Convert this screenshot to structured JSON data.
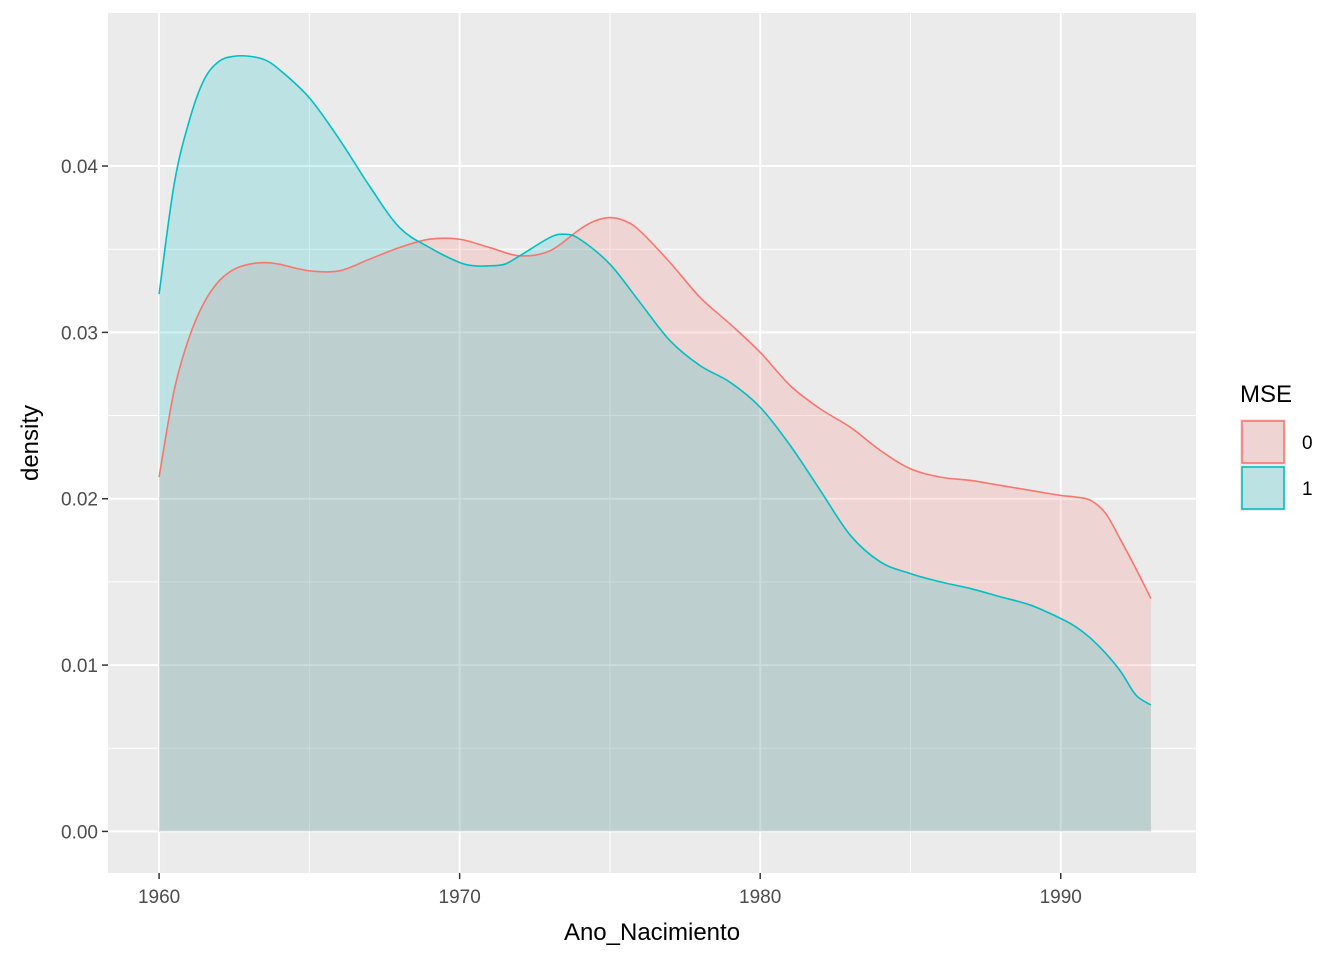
{
  "chart_data": {
    "type": "area",
    "title": "",
    "xlabel": "Ano_Nacimiento",
    "ylabel": "density",
    "xlim": [
      1958.3,
      1994.5
    ],
    "ylim": [
      -0.0025,
      0.0492
    ],
    "x_ticks": [
      1960,
      1970,
      1980,
      1990
    ],
    "x_tick_labels": [
      "1960",
      "1970",
      "1980",
      "1990"
    ],
    "y_ticks": [
      0.0,
      0.01,
      0.02,
      0.03,
      0.04
    ],
    "y_tick_labels": [
      "0.00",
      "0.01",
      "0.02",
      "0.03",
      "0.04"
    ],
    "grid": true,
    "legend": {
      "title": "MSE",
      "placement": "right"
    },
    "series": [
      {
        "name": "0",
        "color": "#F8766D",
        "fill": "rgba(248,118,109,0.2)",
        "x": [
          1960,
          1960.5,
          1961,
          1961.5,
          1962,
          1962.5,
          1963,
          1963.5,
          1964,
          1965,
          1966,
          1967,
          1968,
          1969,
          1970,
          1971,
          1972,
          1973,
          1974,
          1974.5,
          1975,
          1975.5,
          1976,
          1977,
          1978,
          1979,
          1980,
          1981,
          1982,
          1983,
          1984,
          1985,
          1986,
          1987,
          1988,
          1989,
          1990,
          1990.5,
          1991,
          1991.5,
          1992,
          1992.5,
          1993
        ],
        "y": [
          0.0213,
          0.0265,
          0.0297,
          0.0318,
          0.0331,
          0.0338,
          0.0341,
          0.0342,
          0.0341,
          0.0337,
          0.0337,
          0.0344,
          0.0351,
          0.0356,
          0.0356,
          0.0351,
          0.0346,
          0.0349,
          0.0362,
          0.0367,
          0.0369,
          0.0367,
          0.0361,
          0.0342,
          0.0321,
          0.0305,
          0.0288,
          0.0268,
          0.0254,
          0.0243,
          0.0229,
          0.0218,
          0.0213,
          0.0211,
          0.0208,
          0.0205,
          0.0202,
          0.0201,
          0.0199,
          0.0191,
          0.0175,
          0.0158,
          0.014
        ]
      },
      {
        "name": "1",
        "color": "#00BFC4",
        "fill": "rgba(0,191,196,0.2)",
        "x": [
          1960,
          1960.5,
          1961,
          1961.5,
          1962,
          1962.5,
          1963,
          1963.5,
          1964,
          1965,
          1966,
          1967,
          1968,
          1969,
          1970,
          1970.5,
          1971,
          1971.5,
          1972,
          1973,
          1973.5,
          1974,
          1975,
          1976,
          1977,
          1978,
          1979,
          1980,
          1981,
          1982,
          1983,
          1984,
          1985,
          1986,
          1987,
          1988,
          1989,
          1990,
          1990.5,
          1991,
          1991.5,
          1992,
          1992.5,
          1993
        ],
        "y": [
          0.0323,
          0.0389,
          0.0427,
          0.0452,
          0.0463,
          0.0466,
          0.0466,
          0.0464,
          0.0458,
          0.0441,
          0.0416,
          0.0388,
          0.0363,
          0.0351,
          0.0342,
          0.034,
          0.034,
          0.0341,
          0.0346,
          0.0357,
          0.0359,
          0.0356,
          0.0341,
          0.0318,
          0.0295,
          0.028,
          0.027,
          0.0255,
          0.0232,
          0.0205,
          0.0178,
          0.0162,
          0.0155,
          0.015,
          0.0146,
          0.0141,
          0.0136,
          0.0128,
          0.0123,
          0.0116,
          0.0107,
          0.0096,
          0.0082,
          0.0076
        ]
      }
    ]
  }
}
